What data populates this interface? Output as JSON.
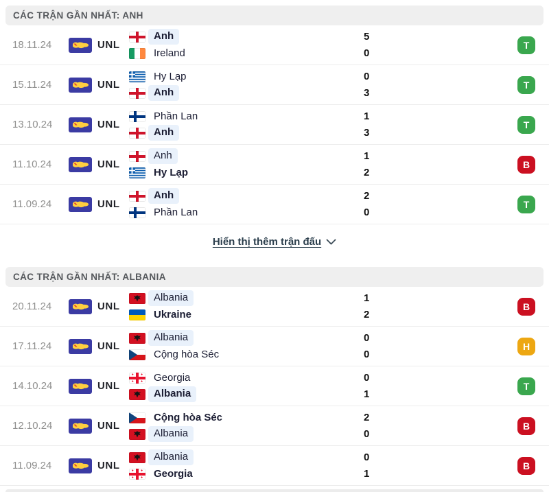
{
  "colors": {
    "header_bg": "#efefef",
    "highlight_bg": "#e9f1fb",
    "win_badge": "#3aa74e",
    "loss_badge": "#cb1021",
    "draw_badge": "#eda712",
    "unl_blue": "#3b3ba3",
    "unl_map_yellow": "#ffcf3f",
    "link_color": "#2b3e4c",
    "date_color": "#90908f"
  },
  "result_legend": {
    "T": "win",
    "B": "loss",
    "H": "draw"
  },
  "show_more": {
    "label": "Hiển thị thêm trận đấu",
    "chevron_icon": "chevron-down"
  },
  "sections": [
    {
      "header": "CÁC TRẬN GẦN NHẤT: ANH",
      "matches": [
        {
          "date": "18.11.24",
          "competition": "UNL",
          "result": "T",
          "scores": [
            "5",
            "0"
          ],
          "teams": [
            {
              "name": "Anh",
              "flag": "england",
              "highlighted": true,
              "bold": true
            },
            {
              "name": "Ireland",
              "flag": "ireland",
              "highlighted": false,
              "bold": false
            }
          ]
        },
        {
          "date": "15.11.24",
          "competition": "UNL",
          "result": "T",
          "scores": [
            "0",
            "3"
          ],
          "teams": [
            {
              "name": "Hy Lạp",
              "flag": "greece",
              "highlighted": false,
              "bold": false
            },
            {
              "name": "Anh",
              "flag": "england",
              "highlighted": true,
              "bold": true
            }
          ]
        },
        {
          "date": "13.10.24",
          "competition": "UNL",
          "result": "T",
          "scores": [
            "1",
            "3"
          ],
          "teams": [
            {
              "name": "Phần Lan",
              "flag": "finland",
              "highlighted": false,
              "bold": false
            },
            {
              "name": "Anh",
              "flag": "england",
              "highlighted": true,
              "bold": true
            }
          ]
        },
        {
          "date": "11.10.24",
          "competition": "UNL",
          "result": "B",
          "scores": [
            "1",
            "2"
          ],
          "teams": [
            {
              "name": "Anh",
              "flag": "england",
              "highlighted": true,
              "bold": false
            },
            {
              "name": "Hy Lạp",
              "flag": "greece",
              "highlighted": false,
              "bold": true
            }
          ]
        },
        {
          "date": "11.09.24",
          "competition": "UNL",
          "result": "T",
          "scores": [
            "2",
            "0"
          ],
          "teams": [
            {
              "name": "Anh",
              "flag": "england",
              "highlighted": true,
              "bold": true
            },
            {
              "name": "Phần Lan",
              "flag": "finland",
              "highlighted": false,
              "bold": false
            }
          ]
        }
      ]
    },
    {
      "header": "CÁC TRẬN GẦN NHẤT: ALBANIA",
      "matches": [
        {
          "date": "20.11.24",
          "competition": "UNL",
          "result": "B",
          "scores": [
            "1",
            "2"
          ],
          "teams": [
            {
              "name": "Albania",
              "flag": "albania",
              "highlighted": true,
              "bold": false
            },
            {
              "name": "Ukraine",
              "flag": "ukraine",
              "highlighted": false,
              "bold": true
            }
          ]
        },
        {
          "date": "17.11.24",
          "competition": "UNL",
          "result": "H",
          "scores": [
            "0",
            "0"
          ],
          "teams": [
            {
              "name": "Albania",
              "flag": "albania",
              "highlighted": true,
              "bold": false
            },
            {
              "name": "Cộng hòa Séc",
              "flag": "czech",
              "highlighted": false,
              "bold": false
            }
          ]
        },
        {
          "date": "14.10.24",
          "competition": "UNL",
          "result": "T",
          "scores": [
            "0",
            "1"
          ],
          "teams": [
            {
              "name": "Georgia",
              "flag": "georgia",
              "highlighted": false,
              "bold": false
            },
            {
              "name": "Albania",
              "flag": "albania",
              "highlighted": true,
              "bold": true
            }
          ]
        },
        {
          "date": "12.10.24",
          "competition": "UNL",
          "result": "B",
          "scores": [
            "2",
            "0"
          ],
          "teams": [
            {
              "name": "Cộng hòa Séc",
              "flag": "czech",
              "highlighted": false,
              "bold": true
            },
            {
              "name": "Albania",
              "flag": "albania",
              "highlighted": true,
              "bold": false
            }
          ]
        },
        {
          "date": "11.09.24",
          "competition": "UNL",
          "result": "B",
          "scores": [
            "0",
            "1"
          ],
          "teams": [
            {
              "name": "Albania",
              "flag": "albania",
              "highlighted": true,
              "bold": false
            },
            {
              "name": "Georgia",
              "flag": "georgia",
              "highlighted": false,
              "bold": true
            }
          ]
        }
      ]
    }
  ]
}
